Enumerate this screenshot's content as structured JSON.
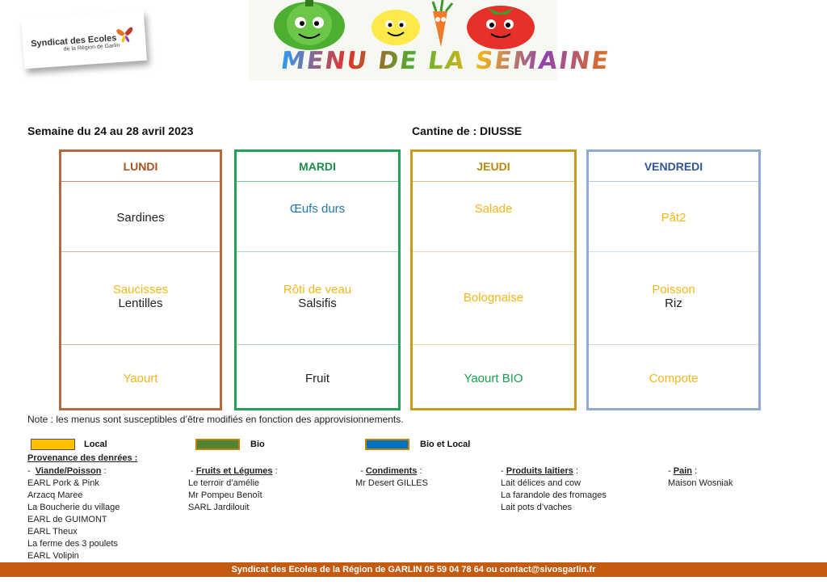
{
  "logo": {
    "line1": "Syndicat des Ecoles",
    "line2": "de la Région de Garlin"
  },
  "banner": {
    "title": "MENU DE LA SEMAINE"
  },
  "header": {
    "week": "Semaine du 24 au 28 avril 2023",
    "canteen": "Cantine de : DIUSSE"
  },
  "days": [
    {
      "name": "LUNDI",
      "entree": [
        "Sardines"
      ],
      "plat": [
        "Saucisses",
        "Lentilles"
      ],
      "dessert": [
        "Yaourt"
      ]
    },
    {
      "name": "MARDI",
      "entree": [
        "Œufs durs"
      ],
      "plat": [
        "Rôti de veau",
        "Salsifis"
      ],
      "dessert": [
        "Fruit"
      ]
    },
    {
      "name": "JEUDI",
      "entree": [
        "Salade"
      ],
      "plat": [
        "Bolognaise"
      ],
      "dessert": [
        "Yaourt BIO"
      ]
    },
    {
      "name": "VENDREDI",
      "entree": [
        "Pât2"
      ],
      "plat": [
        "Poisson",
        "Riz"
      ],
      "dessert": [
        "Compote"
      ]
    }
  ],
  "note": "Note : les menus sont susceptibles d’être modifiés en fonction des approvisionnements.",
  "legend": [
    {
      "label": "Local",
      "color": "#ffc000"
    },
    {
      "label": "Bio",
      "color": "#548235"
    },
    {
      "label": "Bio et Local",
      "color": "#0070c0"
    }
  ],
  "provenance": {
    "title": "Provenance des denrées :",
    "columns": [
      {
        "heading": "Viande/Poisson",
        "items": [
          "EARL Pork & Pink",
          "Arzacq Maree",
          "La Boucherie du village",
          "EARL de GUIMONT",
          "EARL Theux",
          "La ferme des 3 poulets",
          "EARL Volipin"
        ]
      },
      {
        "heading": "Fruits et Légumes",
        "items": [
          "Le terroir d’amélie",
          "Mr Pompeu Benoît",
          "SARL Jardilouit"
        ]
      },
      {
        "heading": "Condiments",
        "items": [
          "Mr Desert GILLES"
        ]
      },
      {
        "heading": "Produits laitiers",
        "items": [
          "Lait délices and cow",
          "La farandole des fromages",
          "Lait pots d’vaches"
        ]
      },
      {
        "heading": "Pain",
        "items": [
          "Maison Wosniak"
        ]
      }
    ]
  },
  "footer": "Syndicat des Ecoles de la Région de GARLIN 05 59 04 78 64 ou contact@sivosgarlin.fr"
}
